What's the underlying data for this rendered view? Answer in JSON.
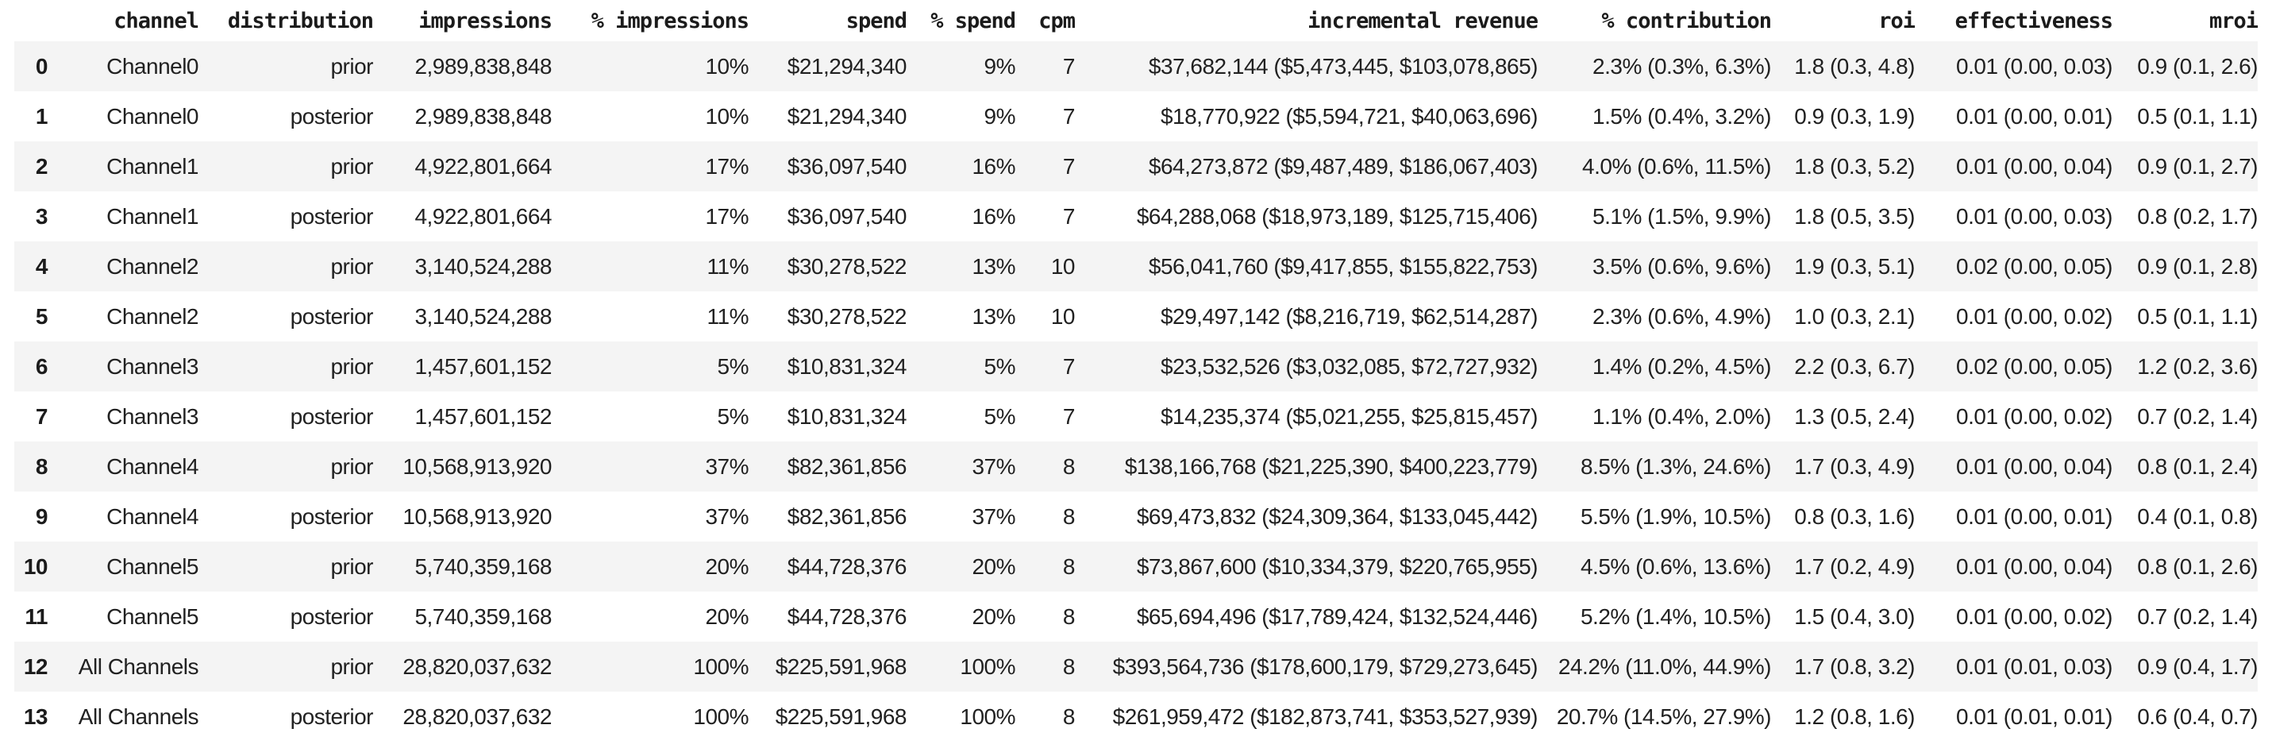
{
  "colors": {
    "background": "#ffffff",
    "row_stripe": "#f4f4f4",
    "text": "#212121"
  },
  "chart_data": {
    "type": "table",
    "title": "",
    "columns": [
      "",
      "channel",
      "distribution",
      "impressions",
      "% impressions",
      "spend",
      "% spend",
      "cpm",
      "incremental revenue",
      "% contribution",
      "roi",
      "effectiveness",
      "mroi"
    ],
    "rows": [
      [
        "0",
        "Channel0",
        "prior",
        "2,989,838,848",
        "10%",
        "$21,294,340",
        "9%",
        "7",
        "$37,682,144 ($5,473,445, $103,078,865)",
        "2.3% (0.3%, 6.3%)",
        "1.8 (0.3, 4.8)",
        "0.01 (0.00, 0.03)",
        "0.9 (0.1, 2.6)"
      ],
      [
        "1",
        "Channel0",
        "posterior",
        "2,989,838,848",
        "10%",
        "$21,294,340",
        "9%",
        "7",
        "$18,770,922 ($5,594,721, $40,063,696)",
        "1.5% (0.4%, 3.2%)",
        "0.9 (0.3, 1.9)",
        "0.01 (0.00, 0.01)",
        "0.5 (0.1, 1.1)"
      ],
      [
        "2",
        "Channel1",
        "prior",
        "4,922,801,664",
        "17%",
        "$36,097,540",
        "16%",
        "7",
        "$64,273,872 ($9,487,489, $186,067,403)",
        "4.0% (0.6%, 11.5%)",
        "1.8 (0.3, 5.2)",
        "0.01 (0.00, 0.04)",
        "0.9 (0.1, 2.7)"
      ],
      [
        "3",
        "Channel1",
        "posterior",
        "4,922,801,664",
        "17%",
        "$36,097,540",
        "16%",
        "7",
        "$64,288,068 ($18,973,189, $125,715,406)",
        "5.1% (1.5%, 9.9%)",
        "1.8 (0.5, 3.5)",
        "0.01 (0.00, 0.03)",
        "0.8 (0.2, 1.7)"
      ],
      [
        "4",
        "Channel2",
        "prior",
        "3,140,524,288",
        "11%",
        "$30,278,522",
        "13%",
        "10",
        "$56,041,760 ($9,417,855, $155,822,753)",
        "3.5% (0.6%, 9.6%)",
        "1.9 (0.3, 5.1)",
        "0.02 (0.00, 0.05)",
        "0.9 (0.1, 2.8)"
      ],
      [
        "5",
        "Channel2",
        "posterior",
        "3,140,524,288",
        "11%",
        "$30,278,522",
        "13%",
        "10",
        "$29,497,142 ($8,216,719, $62,514,287)",
        "2.3% (0.6%, 4.9%)",
        "1.0 (0.3, 2.1)",
        "0.01 (0.00, 0.02)",
        "0.5 (0.1, 1.1)"
      ],
      [
        "6",
        "Channel3",
        "prior",
        "1,457,601,152",
        "5%",
        "$10,831,324",
        "5%",
        "7",
        "$23,532,526 ($3,032,085, $72,727,932)",
        "1.4% (0.2%, 4.5%)",
        "2.2 (0.3, 6.7)",
        "0.02 (0.00, 0.05)",
        "1.2 (0.2, 3.6)"
      ],
      [
        "7",
        "Channel3",
        "posterior",
        "1,457,601,152",
        "5%",
        "$10,831,324",
        "5%",
        "7",
        "$14,235,374 ($5,021,255, $25,815,457)",
        "1.1% (0.4%, 2.0%)",
        "1.3 (0.5, 2.4)",
        "0.01 (0.00, 0.02)",
        "0.7 (0.2, 1.4)"
      ],
      [
        "8",
        "Channel4",
        "prior",
        "10,568,913,920",
        "37%",
        "$82,361,856",
        "37%",
        "8",
        "$138,166,768 ($21,225,390, $400,223,779)",
        "8.5% (1.3%, 24.6%)",
        "1.7 (0.3, 4.9)",
        "0.01 (0.00, 0.04)",
        "0.8 (0.1, 2.4)"
      ],
      [
        "9",
        "Channel4",
        "posterior",
        "10,568,913,920",
        "37%",
        "$82,361,856",
        "37%",
        "8",
        "$69,473,832 ($24,309,364, $133,045,442)",
        "5.5% (1.9%, 10.5%)",
        "0.8 (0.3, 1.6)",
        "0.01 (0.00, 0.01)",
        "0.4 (0.1, 0.8)"
      ],
      [
        "10",
        "Channel5",
        "prior",
        "5,740,359,168",
        "20%",
        "$44,728,376",
        "20%",
        "8",
        "$73,867,600 ($10,334,379, $220,765,955)",
        "4.5% (0.6%, 13.6%)",
        "1.7 (0.2, 4.9)",
        "0.01 (0.00, 0.04)",
        "0.8 (0.1, 2.6)"
      ],
      [
        "11",
        "Channel5",
        "posterior",
        "5,740,359,168",
        "20%",
        "$44,728,376",
        "20%",
        "8",
        "$65,694,496 ($17,789,424, $132,524,446)",
        "5.2% (1.4%, 10.5%)",
        "1.5 (0.4, 3.0)",
        "0.01 (0.00, 0.02)",
        "0.7 (0.2, 1.4)"
      ],
      [
        "12",
        "All Channels",
        "prior",
        "28,820,037,632",
        "100%",
        "$225,591,968",
        "100%",
        "8",
        "$393,564,736 ($178,600,179, $729,273,645)",
        "24.2% (11.0%, 44.9%)",
        "1.7 (0.8, 3.2)",
        "0.01 (0.01, 0.03)",
        "0.9 (0.4, 1.7)"
      ],
      [
        "13",
        "All Channels",
        "posterior",
        "28,820,037,632",
        "100%",
        "$225,591,968",
        "100%",
        "8",
        "$261,959,472 ($182,873,741, $353,527,939)",
        "20.7% (14.5%, 27.9%)",
        "1.2 (0.8, 1.6)",
        "0.01 (0.01, 0.01)",
        "0.6 (0.4, 0.7)"
      ]
    ]
  }
}
